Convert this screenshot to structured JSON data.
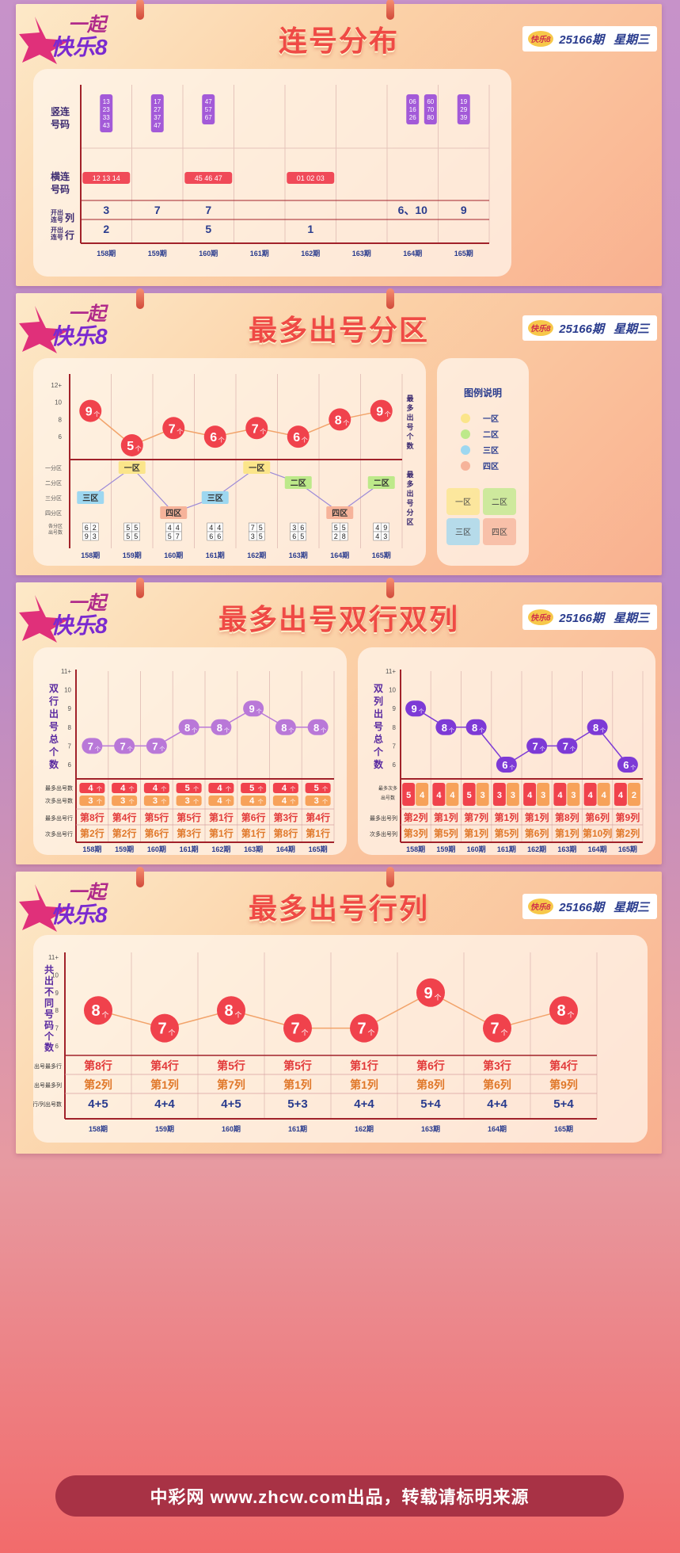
{
  "brand": {
    "logo_text": "一起",
    "logo_sub": "快乐8",
    "mini_logo": "快乐8"
  },
  "issue": {
    "number": "25166期",
    "weekday": "星期三"
  },
  "periods": [
    "158期",
    "159期",
    "160期",
    "161期",
    "162期",
    "163期",
    "164期",
    "165期"
  ],
  "section1": {
    "title": "连号分布",
    "row_labels": {
      "vertical": "竖连\n号码",
      "horizontal": "横连\n号码",
      "col": "开出\n连号",
      "col_suffix": "列",
      "row": "开出\n连号",
      "row_suffix": "行"
    },
    "vertical_groups": [
      {
        "period": 0,
        "nums": [
          "13",
          "23",
          "33",
          "43"
        ]
      },
      {
        "period": 1,
        "nums": [
          "17",
          "27",
          "37",
          "47"
        ]
      },
      {
        "period": 2,
        "nums": [
          "47",
          "57",
          "67"
        ]
      },
      {
        "period": 6,
        "nums": [
          "06",
          "16",
          "26"
        ]
      },
      {
        "period": 6.35,
        "nums": [
          "60",
          "70",
          "80"
        ]
      },
      {
        "period": 7,
        "nums": [
          "19",
          "29",
          "39"
        ]
      }
    ],
    "horizontal_groups": [
      {
        "period": 0,
        "text": "12 13 14"
      },
      {
        "period": 2,
        "text": "45 46 47"
      },
      {
        "period": 4,
        "text": "01 02 03"
      }
    ],
    "col_values": [
      "3",
      "7",
      "7",
      "",
      "",
      "",
      "6、10",
      "9"
    ],
    "row_values": [
      "2",
      "",
      "5",
      "",
      "1",
      "",
      "",
      ""
    ]
  },
  "section2": {
    "title": "最多出号分区",
    "y_ticks": [
      "12+",
      "10",
      "8",
      "6"
    ],
    "right_label_top": "最多出号个数",
    "right_label_bottom": "最多出号分区",
    "zone_axis": [
      "一分区",
      "二分区",
      "三分区",
      "四分区"
    ],
    "bottom_label": "各分区出号数",
    "counts": [
      9,
      5,
      7,
      6,
      7,
      6,
      8,
      9
    ],
    "unit": "个",
    "zones": [
      "三区",
      "一区",
      "四区",
      "三区",
      "一区",
      "二区",
      "四区",
      "二区"
    ],
    "zone_levels": [
      3,
      1,
      4,
      3,
      1,
      2,
      4,
      2
    ],
    "zone_counts": [
      [
        "6",
        "2",
        "9",
        "3"
      ],
      [
        "5",
        "5",
        "5",
        "5"
      ],
      [
        "4",
        "4",
        "5",
        "7"
      ],
      [
        "4",
        "4",
        "6",
        "6"
      ],
      [
        "7",
        "5",
        "3",
        "5"
      ],
      [
        "3",
        "6",
        "6",
        "5"
      ],
      [
        "5",
        "5",
        "2",
        "8"
      ],
      [
        "4",
        "9",
        "4",
        "3"
      ]
    ],
    "legend_title": "图例说明",
    "legend": [
      {
        "label": "一区",
        "color": "#fbe58a"
      },
      {
        "label": "二区",
        "color": "#bde98a"
      },
      {
        "label": "三区",
        "color": "#9dd7f0"
      },
      {
        "label": "四区",
        "color": "#f6b39a"
      }
    ],
    "legend_grid": [
      "一区",
      "二区",
      "三区",
      "四区"
    ]
  },
  "section3": {
    "title": "最多出号双行双列",
    "left": {
      "ylabel": "双行出号总个数",
      "y_ticks": [
        "11+",
        "10",
        "9",
        "8",
        "7",
        "6"
      ],
      "values": [
        7,
        7,
        7,
        8,
        8,
        9,
        8,
        8
      ],
      "rows": [
        {
          "label": "最多出号数",
          "values": [
            "4",
            "4",
            "4",
            "5",
            "4",
            "5",
            "4",
            "5"
          ]
        },
        {
          "label": "次多出号数",
          "values": [
            "3",
            "3",
            "3",
            "3",
            "4",
            "4",
            "4",
            "3"
          ]
        }
      ],
      "most_row_label": "最多出号行",
      "most": [
        "第8行",
        "第4行",
        "第5行",
        "第5行",
        "第1行",
        "第6行",
        "第3行",
        "第4行"
      ],
      "second_row_label": "次多出号行",
      "second": [
        "第2行",
        "第2行",
        "第6行",
        "第3行",
        "第1行",
        "第1行",
        "第8行",
        "第1行"
      ]
    },
    "right": {
      "ylabel": "双列出号总个数",
      "y_ticks": [
        "11+",
        "10",
        "9",
        "8",
        "7",
        "6"
      ],
      "values": [
        9,
        8,
        8,
        6,
        7,
        7,
        8,
        6
      ],
      "stack_label": "最多次多出号数",
      "pairs": [
        [
          "5",
          "4"
        ],
        [
          "4",
          "4"
        ],
        [
          "5",
          "3"
        ],
        [
          "3",
          "3"
        ],
        [
          "4",
          "3"
        ],
        [
          "4",
          "3"
        ],
        [
          "4",
          "4"
        ],
        [
          "4",
          "2"
        ]
      ],
      "most_row_label": "最多出号列",
      "most": [
        "第2列",
        "第1列",
        "第7列",
        "第1列",
        "第1列",
        "第8列",
        "第6列",
        "第9列"
      ],
      "second_row_label": "次多出号列",
      "second": [
        "第3列",
        "第5列",
        "第1列",
        "第5列",
        "第6列",
        "第1列",
        "第10列",
        "第2列"
      ]
    }
  },
  "section4": {
    "title": "最多出号行列",
    "ylabel": "共出不同号码个数",
    "y_ticks": [
      "11+",
      "10",
      "9",
      "8",
      "7",
      "6"
    ],
    "values": [
      8,
      7,
      8,
      7,
      7,
      9,
      7,
      8
    ],
    "row_label_most_row": "出号最多行",
    "most_row": [
      "第8行",
      "第4行",
      "第5行",
      "第5行",
      "第1行",
      "第6行",
      "第3行",
      "第4行"
    ],
    "row_label_most_col": "出号最多列",
    "most_col": [
      "第2列",
      "第1列",
      "第7列",
      "第1列",
      "第1列",
      "第8列",
      "第6列",
      "第9列"
    ],
    "row_label_count": "行/列出号数",
    "counts": [
      "4+5",
      "4+4",
      "4+5",
      "5+3",
      "4+4",
      "5+4",
      "4+4",
      "5+4"
    ]
  },
  "footer": "中彩网 www.zhcw.com出品，转载请标明来源"
}
